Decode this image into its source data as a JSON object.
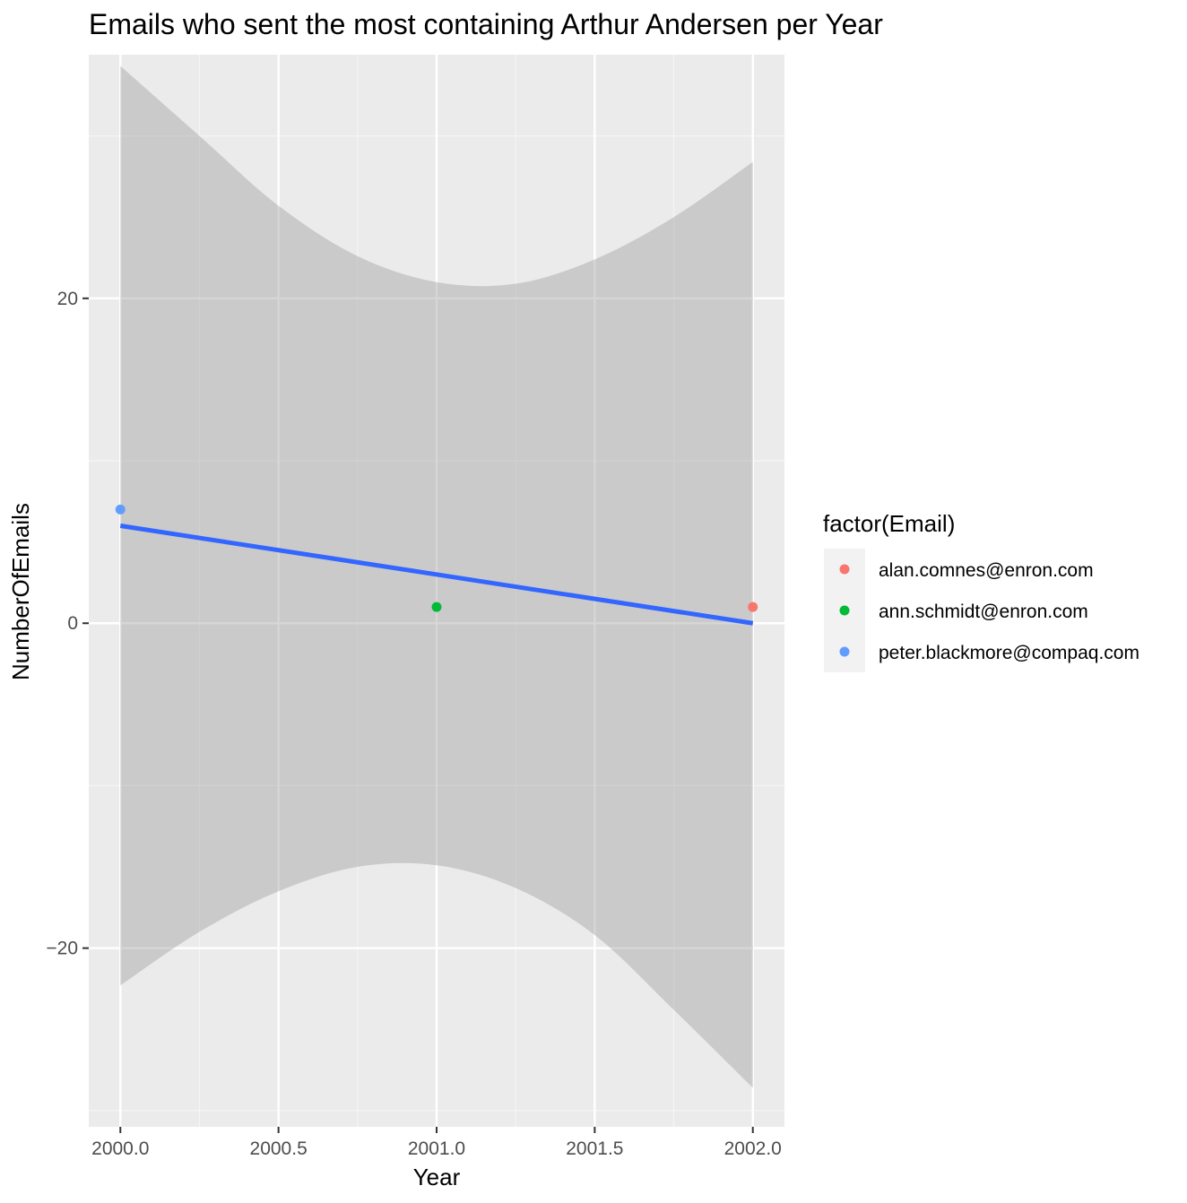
{
  "chart_data": {
    "type": "scatter",
    "title": "Emails who sent the most containing Arthur Andersen per Year",
    "xlabel": "Year",
    "ylabel": "NumberOfEmails",
    "xlim": [
      1999.9,
      2002.1
    ],
    "ylim": [
      -31,
      35
    ],
    "x_ticks": [
      {
        "value": 2000.0,
        "label": "2000.0"
      },
      {
        "value": 2000.5,
        "label": "2000.5"
      },
      {
        "value": 2001.0,
        "label": "2001.0"
      },
      {
        "value": 2001.5,
        "label": "2001.5"
      },
      {
        "value": 2002.0,
        "label": "2002.0"
      }
    ],
    "y_ticks": [
      {
        "value": -20,
        "label": "−20"
      },
      {
        "value": 0,
        "label": "0"
      },
      {
        "value": 20,
        "label": "20"
      }
    ],
    "grid": true,
    "legend": {
      "title": "factor(Email)",
      "position": "right",
      "entries": [
        {
          "label": "alan.comnes@enron.com",
          "color": "#F8766D"
        },
        {
          "label": "ann.schmidt@enron.com",
          "color": "#00BA38"
        },
        {
          "label": "peter.blackmore@compaq.com",
          "color": "#619CFF"
        }
      ]
    },
    "points": [
      {
        "x": 2000,
        "y": 7,
        "series": "peter.blackmore@compaq.com",
        "color": "#619CFF"
      },
      {
        "x": 2001,
        "y": 1,
        "series": "ann.schmidt@enron.com",
        "color": "#00BA38"
      },
      {
        "x": 2002,
        "y": 1,
        "series": "alan.comnes@enron.com",
        "color": "#F8766D"
      }
    ],
    "trend_line": {
      "x": [
        2000,
        2002
      ],
      "y": [
        6,
        0
      ],
      "color": "#3366FF"
    },
    "confidence_band": {
      "x": [
        2000.0,
        2000.25,
        2000.5,
        2000.75,
        2001.0,
        2001.25,
        2001.5,
        2001.75,
        2002.0
      ],
      "upper": [
        34.3,
        30.0,
        25.7,
        22.6,
        21.0,
        20.9,
        22.4,
        25.0,
        28.4
      ],
      "lower": [
        -22.3,
        -19.0,
        -16.5,
        -15.0,
        -14.9,
        -16.3,
        -19.2,
        -23.8,
        -28.6
      ],
      "color": "#999999"
    },
    "colors": {
      "panel_background": "#EBEBEB",
      "grid_major": "#FFFFFF",
      "grid_minor": "#F5F5F5",
      "legend_key_background": "#F2F2F2"
    }
  }
}
